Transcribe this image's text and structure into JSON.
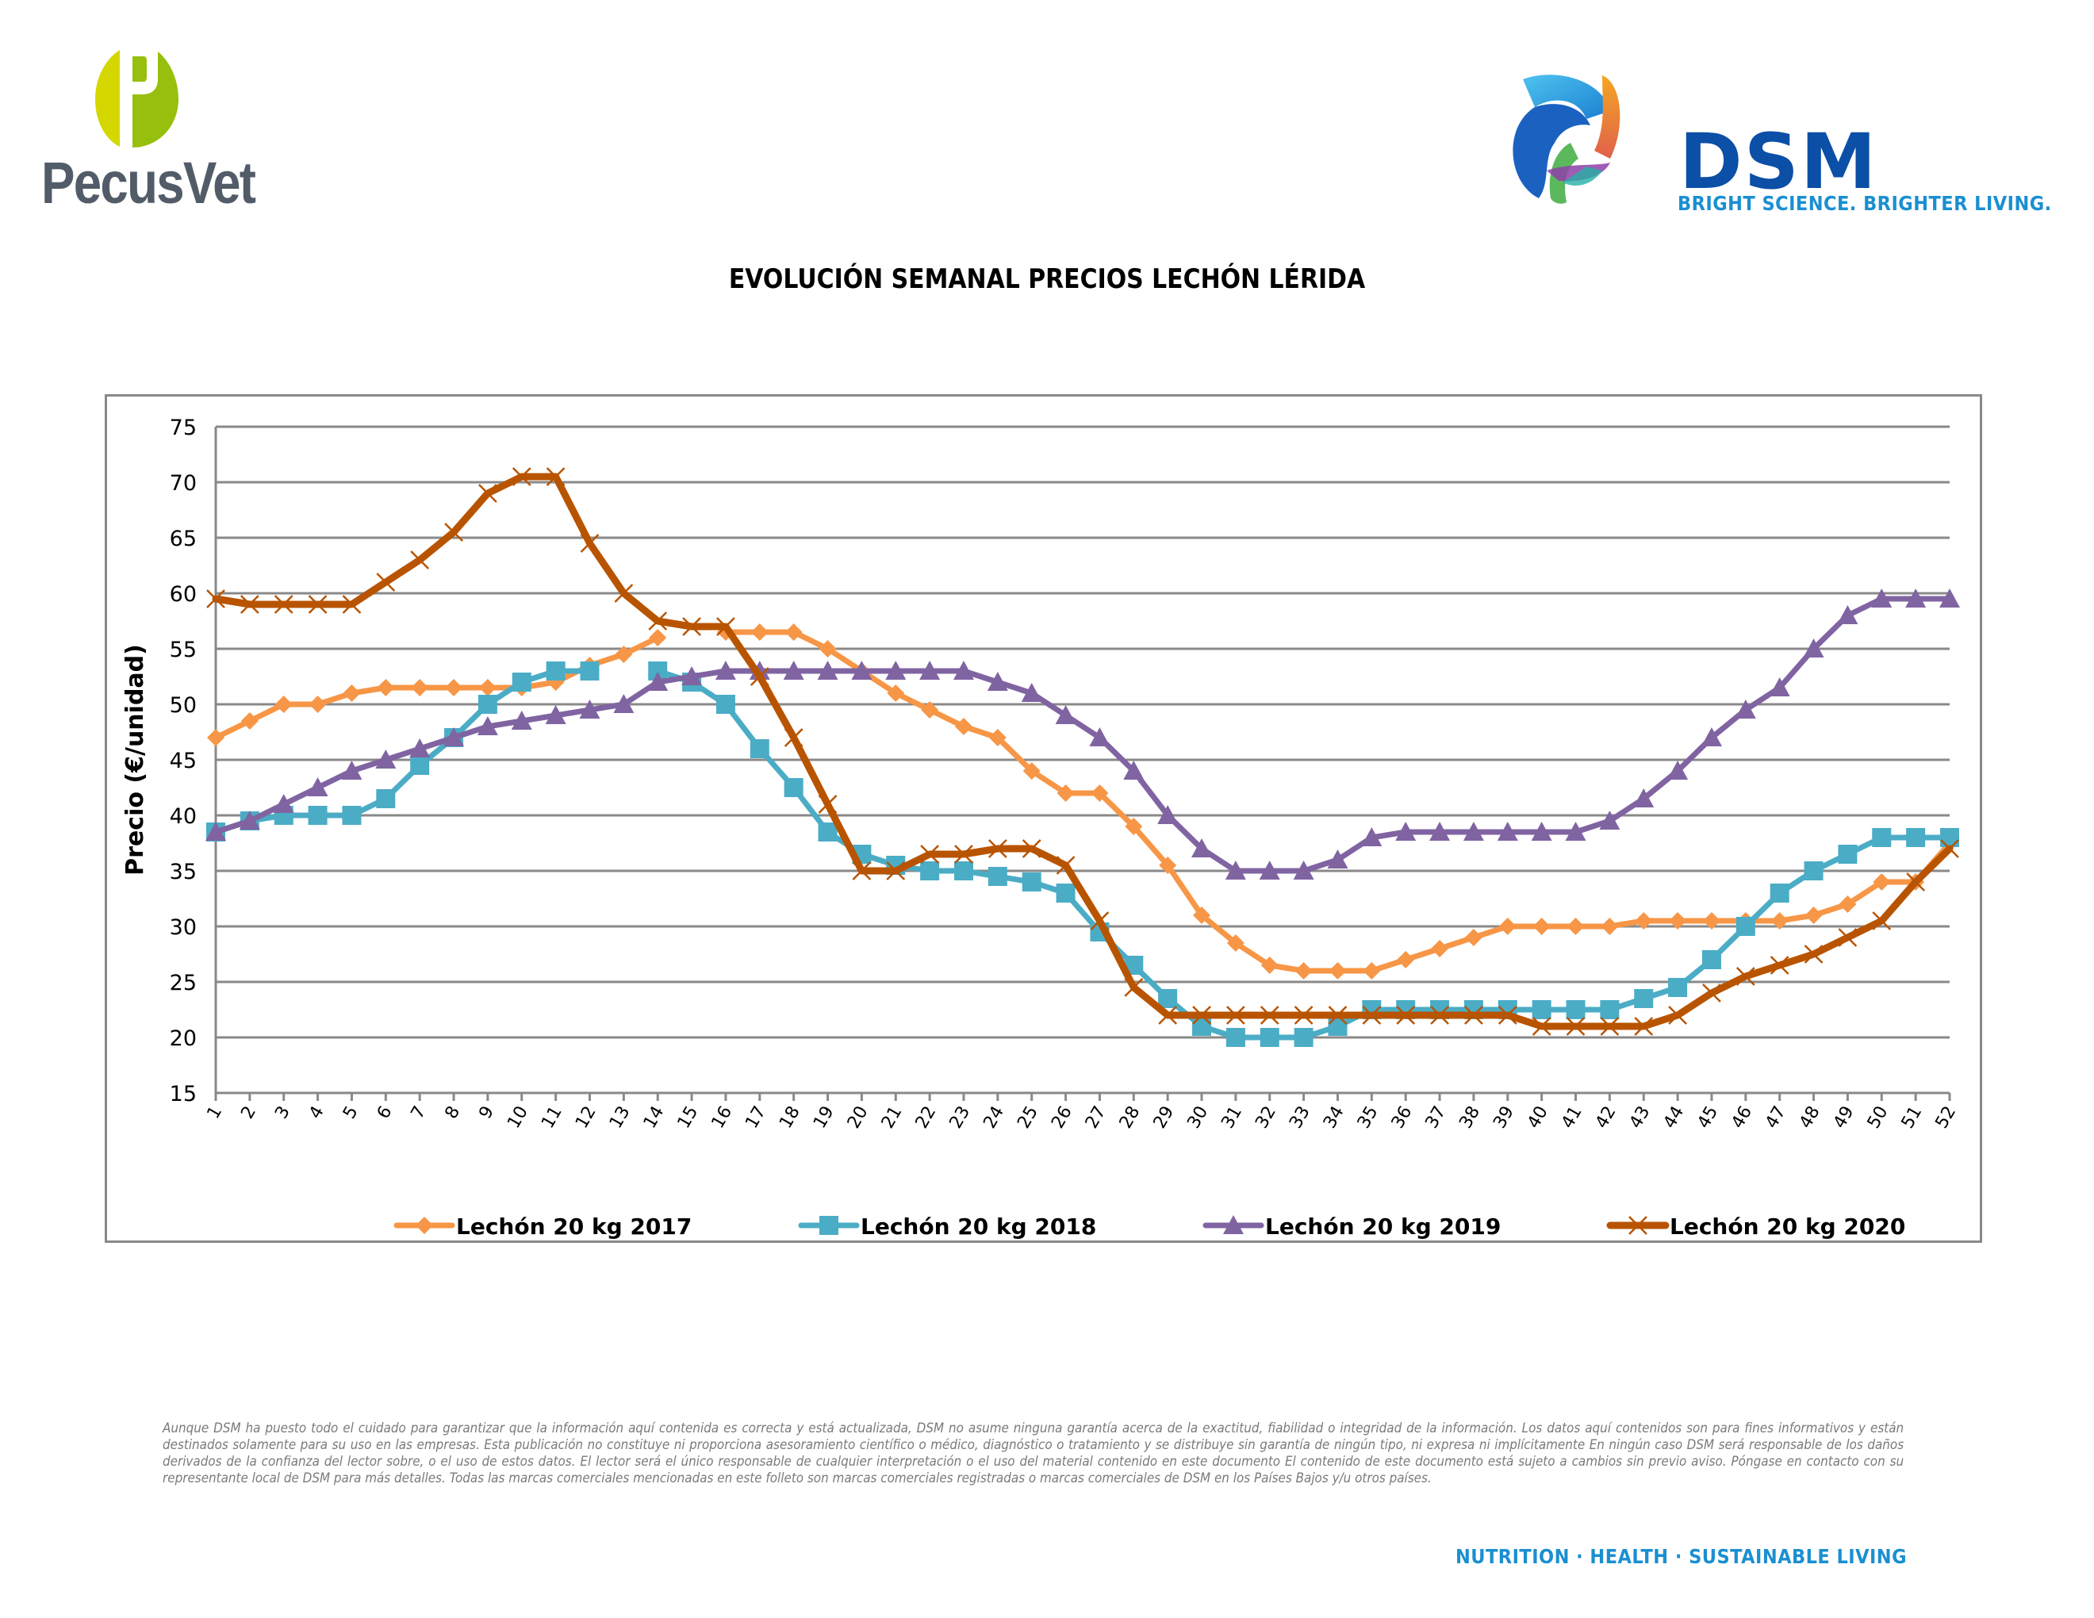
{
  "header": {
    "left_logo": {
      "name": "PecusVet",
      "icon": "pecusvet-p-logo"
    },
    "right_logo": {
      "name": "DSM",
      "tagline": "BRIGHT SCIENCE. BRIGHTER LIVING.",
      "icon": "dsm-swirl-logo"
    }
  },
  "footer": {
    "disclaimer": "Aunque DSM ha puesto todo el cuidado para garantizar que la información aquí contenida es correcta y está actualizada, DSM no asume ninguna garantía acerca de la exactitud, fiabilidad o integridad de la información. Los datos aquí contenidos son para fines informativos y están destinados solamente para su uso en las empresas. Esta publicación no constituye ni proporciona asesoramiento científico o médico, diagnóstico o tratamiento y se distribuye sin garantía de ningún tipo, ni expresa ni implícitamente En ningún caso DSM será responsable de los daños derivados de la confianza del lector sobre, o el uso de estos datos. El lector será el único responsable de cualquier interpretación o el uso del material contenido en este documento El contenido de este documento está sujeto a cambios sin previo aviso. Póngase en contacto con su representante local de DSM para más detalles. Todas las marcas comerciales mencionadas en este folleto son marcas comerciales registradas o marcas comerciales de DSM en los Países Bajos y/u otros países.",
    "tagline": "NUTRITION  ·  HEALTH  ·  SUSTAINABLE LIVING"
  },
  "colors": {
    "s2017": "#f79646",
    "s2018": "#4bacc6",
    "s2019": "#8064a2",
    "s2020": "#b85400",
    "grid": "#898989",
    "brand_blue": "#0b4fa6",
    "brand_light_blue": "#1a8fd1"
  },
  "chart_data": {
    "type": "line",
    "title": "EVOLUCIÓN SEMANAL PRECIOS LECHÓN LÉRIDA",
    "xlabel": "",
    "ylabel": "Precio (€/unidad)",
    "ylim": [
      15,
      75
    ],
    "yticks": [
      15,
      20,
      25,
      30,
      35,
      40,
      45,
      50,
      55,
      60,
      65,
      70,
      75
    ],
    "grid": true,
    "legend_position": "bottom",
    "x": [
      "1",
      "2",
      "3",
      "4",
      "5",
      "6",
      "7",
      "8",
      "9",
      "10",
      "11",
      "12",
      "13",
      "14",
      "15",
      "16",
      "17",
      "18",
      "19",
      "20",
      "21",
      "22",
      "23",
      "24",
      "25",
      "26",
      "27",
      "28",
      "29",
      "30",
      "31",
      "32",
      "33",
      "34",
      "35",
      "36",
      "37",
      "38",
      "39",
      "40",
      "41",
      "42",
      "43",
      "44",
      "45",
      "46",
      "47",
      "48",
      "49",
      "50",
      "51",
      "52"
    ],
    "series": [
      {
        "name": "Lechón 20 kg 2017",
        "marker": "diamond",
        "color_key": "s2017",
        "values": [
          47,
          48.5,
          50,
          50,
          51,
          51.5,
          51.5,
          51.5,
          51.5,
          51.5,
          52,
          53.5,
          54.5,
          56,
          null,
          56.5,
          56.5,
          56.5,
          55,
          53,
          51,
          49.5,
          48,
          47,
          44,
          42,
          42,
          39,
          35.5,
          31,
          28.5,
          26.5,
          26,
          26,
          26,
          27,
          28,
          29,
          30,
          30,
          30,
          30,
          30.5,
          30.5,
          30.5,
          30.5,
          30.5,
          31,
          32,
          34,
          34,
          37.5
        ]
      },
      {
        "name": "Lechón 20 kg 2018",
        "marker": "square",
        "color_key": "s2018",
        "values": [
          38.5,
          39.5,
          40,
          40,
          40,
          41.5,
          44.5,
          47,
          50,
          52,
          53,
          53,
          null,
          53,
          52,
          50,
          46,
          42.5,
          38.5,
          36.5,
          35.5,
          35,
          35,
          34.5,
          34,
          33,
          29.5,
          26.5,
          23.5,
          21,
          20,
          20,
          20,
          21,
          22.5,
          22.5,
          22.5,
          22.5,
          22.5,
          22.5,
          22.5,
          22.5,
          23.5,
          24.5,
          27,
          30,
          33,
          35,
          36.5,
          38,
          38,
          38
        ]
      },
      {
        "name": "Lechón 20 kg 2019",
        "marker": "triangle",
        "color_key": "s2019",
        "values": [
          38.5,
          39.5,
          41,
          42.5,
          44,
          45,
          46,
          47,
          48,
          48.5,
          49,
          49.5,
          50,
          52,
          52.5,
          53,
          53,
          53,
          53,
          53,
          53,
          53,
          53,
          52,
          51,
          49,
          47,
          44,
          40,
          37,
          35,
          35,
          35,
          36,
          38,
          38.5,
          38.5,
          38.5,
          38.5,
          38.5,
          38.5,
          39.5,
          41.5,
          44,
          47,
          49.5,
          51.5,
          55,
          58,
          59.5,
          59.5,
          59.5
        ]
      },
      {
        "name": "Lechón 20 kg 2020",
        "marker": "x",
        "color_key": "s2020",
        "values": [
          59.5,
          59,
          59,
          59,
          59,
          61,
          63,
          65.5,
          69,
          70.5,
          70.5,
          64.5,
          60,
          57.5,
          57,
          57,
          52.5,
          47,
          41,
          35,
          35,
          36.5,
          36.5,
          37,
          37,
          35.5,
          30.5,
          24.5,
          22,
          22,
          22,
          22,
          22,
          22,
          22,
          22,
          22,
          22,
          22,
          21,
          21,
          21,
          21,
          22,
          24,
          25.5,
          26.5,
          27.5,
          29,
          30.5,
          34,
          37
        ]
      }
    ]
  }
}
